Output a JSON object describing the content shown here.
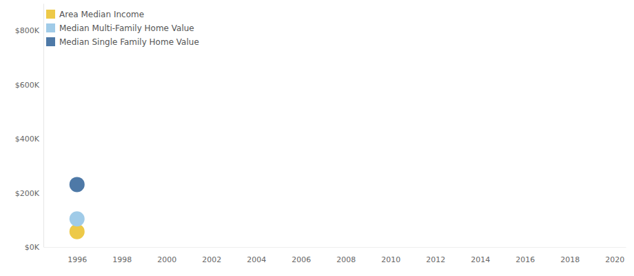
{
  "chart_data": {
    "type": "scatter",
    "x": [
      1996
    ],
    "series": [
      {
        "name": "Area Median Income",
        "color": "#edc948",
        "values": [
          57000
        ]
      },
      {
        "name": "Median Multi-Family Home Value",
        "color": "#a0cbe8",
        "values": [
          104000
        ]
      },
      {
        "name": "Median Single Family Home Value",
        "color": "#4e79a7",
        "values": [
          231000
        ]
      }
    ],
    "xlim": [
      1994.5,
      2020.5
    ],
    "xticks": [
      1996,
      1998,
      2000,
      2002,
      2004,
      2006,
      2008,
      2010,
      2012,
      2014,
      2016,
      2018,
      2020
    ],
    "ylim": [
      0,
      900000
    ],
    "yticks": [
      {
        "value": 0,
        "label": "$0K"
      },
      {
        "value": 200000,
        "label": "$200K"
      },
      {
        "value": 400000,
        "label": "$400K"
      },
      {
        "value": 600000,
        "label": "$600K"
      },
      {
        "value": 800000,
        "label": "$800K"
      }
    ],
    "grid": false,
    "legend": "top-left",
    "marker": "circle"
  }
}
